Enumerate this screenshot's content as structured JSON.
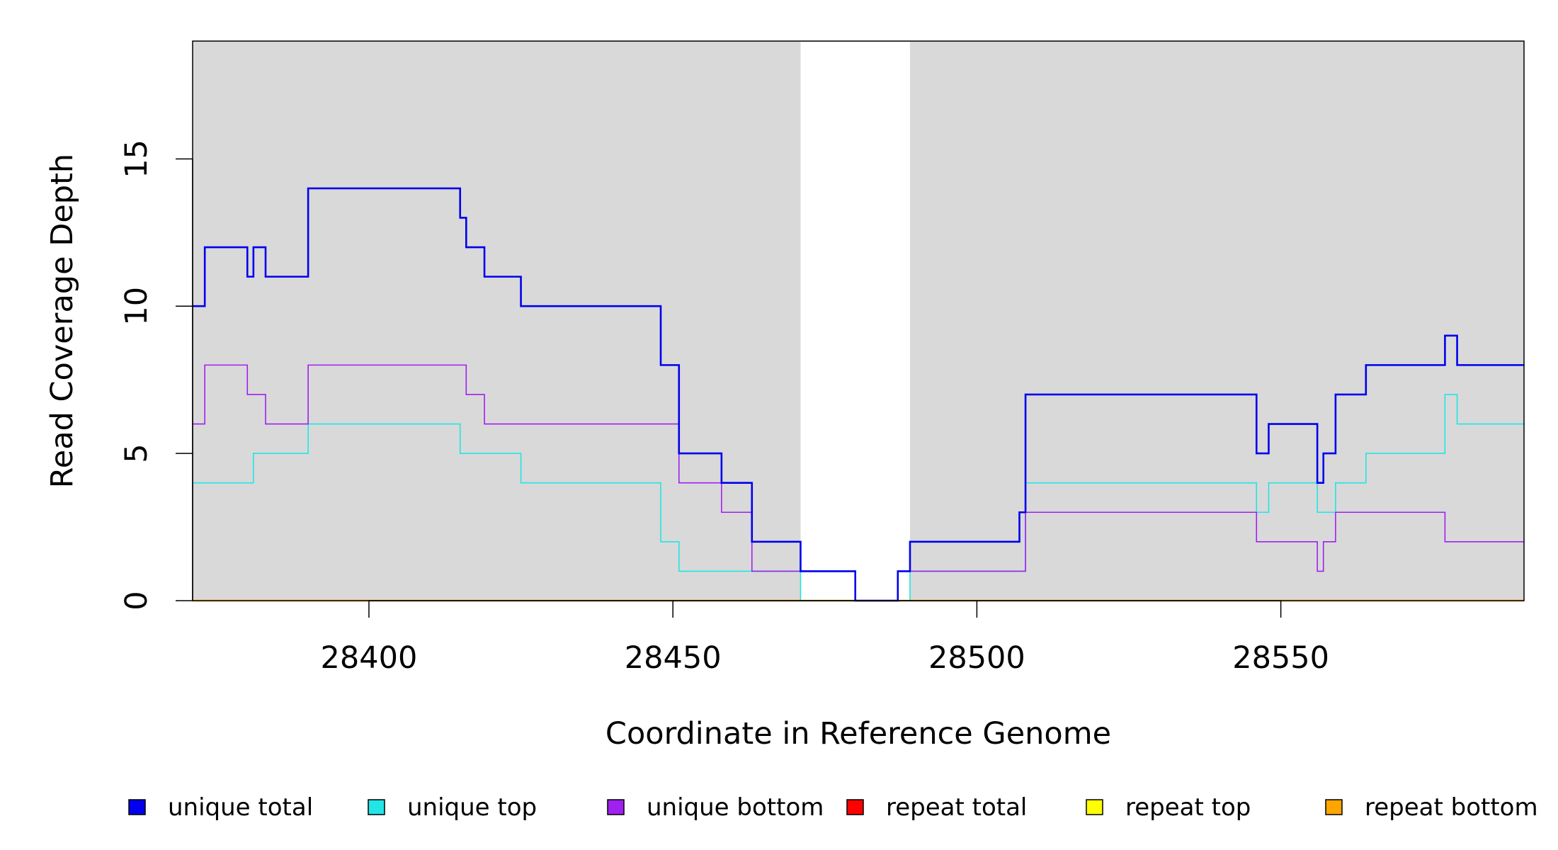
{
  "chart_data": {
    "type": "line",
    "xlabel": "Coordinate in Reference Genome",
    "ylabel": "Read Coverage Depth",
    "xlim": [
      28371,
      28590
    ],
    "ylim": [
      0,
      19
    ],
    "x_ticks": [
      28400,
      28450,
      28500,
      28550
    ],
    "x_tick_labels": [
      "28400",
      "28450",
      "28500",
      "28550"
    ],
    "y_ticks": [
      0,
      5,
      10,
      15
    ],
    "y_tick_labels": [
      "0",
      "5",
      "10",
      "15"
    ],
    "background_color": "#d9d9d9",
    "highlight_regions": [
      {
        "x0": 28471,
        "x1": 28489,
        "color": "#ffffff"
      }
    ],
    "grid": false,
    "legend_position": "bottom",
    "series": [
      {
        "name": "unique total",
        "color": "#0000ee",
        "width": 2.6,
        "points": [
          [
            28371,
            10
          ],
          [
            28373,
            12
          ],
          [
            28380,
            11
          ],
          [
            28381,
            12
          ],
          [
            28383,
            11
          ],
          [
            28390,
            14
          ],
          [
            28415,
            13
          ],
          [
            28416,
            12
          ],
          [
            28419,
            11
          ],
          [
            28425,
            10
          ],
          [
            28448,
            8
          ],
          [
            28451,
            5
          ],
          [
            28458,
            4
          ],
          [
            28463,
            2
          ],
          [
            28471,
            1
          ],
          [
            28480,
            0
          ],
          [
            28487,
            1
          ],
          [
            28489,
            2
          ],
          [
            28507,
            3
          ],
          [
            28508,
            7
          ],
          [
            28546,
            5
          ],
          [
            28548,
            6
          ],
          [
            28556,
            4
          ],
          [
            28557,
            5
          ],
          [
            28559,
            7
          ],
          [
            28564,
            8
          ],
          [
            28577,
            9
          ],
          [
            28579,
            8
          ],
          [
            28590,
            8
          ]
        ]
      },
      {
        "name": "unique top",
        "color": "#22e5e5",
        "width": 1.6,
        "points": [
          [
            28371,
            4
          ],
          [
            28381,
            5
          ],
          [
            28390,
            6
          ],
          [
            28415,
            5
          ],
          [
            28425,
            4
          ],
          [
            28448,
            2
          ],
          [
            28451,
            1
          ],
          [
            28463,
            1
          ],
          [
            28471,
            0
          ],
          [
            28489,
            1
          ],
          [
            28507,
            1
          ],
          [
            28508,
            4
          ],
          [
            28546,
            3
          ],
          [
            28548,
            4
          ],
          [
            28556,
            3
          ],
          [
            28559,
            4
          ],
          [
            28564,
            5
          ],
          [
            28577,
            7
          ],
          [
            28579,
            6
          ],
          [
            28590,
            6
          ]
        ]
      },
      {
        "name": "unique bottom",
        "color": "#a020f0",
        "width": 1.6,
        "points": [
          [
            28371,
            6
          ],
          [
            28373,
            8
          ],
          [
            28380,
            7
          ],
          [
            28383,
            6
          ],
          [
            28390,
            8
          ],
          [
            28416,
            7
          ],
          [
            28419,
            6
          ],
          [
            28451,
            4
          ],
          [
            28458,
            3
          ],
          [
            28463,
            1
          ],
          [
            28471,
            1
          ],
          [
            28480,
            0
          ],
          [
            28487,
            1
          ],
          [
            28508,
            3
          ],
          [
            28546,
            2
          ],
          [
            28556,
            1
          ],
          [
            28557,
            2
          ],
          [
            28559,
            3
          ],
          [
            28577,
            2
          ],
          [
            28590,
            2
          ]
        ]
      },
      {
        "name": "repeat total",
        "color": "#ff0000",
        "width": 1.6,
        "points": [
          [
            28371,
            0
          ],
          [
            28590,
            0
          ]
        ]
      },
      {
        "name": "repeat top",
        "color": "#ffff00",
        "width": 1.6,
        "points": [
          [
            28371,
            0
          ],
          [
            28590,
            0
          ]
        ]
      },
      {
        "name": "repeat bottom",
        "color": "#ffa500",
        "width": 2.4,
        "points": [
          [
            28371,
            0
          ],
          [
            28590,
            0
          ]
        ]
      }
    ]
  }
}
